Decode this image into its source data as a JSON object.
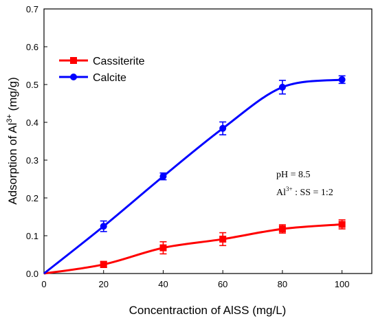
{
  "chart_data": {
    "type": "line",
    "xlabel": "Concentraction of AlSS (mg/L)",
    "ylabel_main": "Adsorption of Al",
    "ylabel_sup": "3+",
    "ylabel_unit": " (mg/g)",
    "xlim": [
      0,
      110
    ],
    "ylim": [
      0,
      0.7
    ],
    "xticks": [
      0,
      20,
      40,
      60,
      80,
      100
    ],
    "yticks": [
      0.0,
      0.1,
      0.2,
      0.3,
      0.4,
      0.5,
      0.6,
      0.7
    ],
    "xtick_labels": [
      "0",
      "20",
      "40",
      "60",
      "80",
      "100"
    ],
    "ytick_labels": [
      "0.0",
      "0.1",
      "0.2",
      "0.3",
      "0.4",
      "0.5",
      "0.6",
      "0.7"
    ],
    "grid": false,
    "legend_position": "top-left",
    "series": [
      {
        "name": "Cassiterite",
        "color": "#ff0000",
        "marker": "square",
        "x": [
          0,
          20,
          40,
          60,
          80,
          100
        ],
        "y": [
          0,
          0.024,
          0.068,
          0.091,
          0.118,
          0.13
        ],
        "err": [
          0,
          0.008,
          0.016,
          0.017,
          0.011,
          0.012
        ]
      },
      {
        "name": "Calcite",
        "color": "#0000ff",
        "marker": "circle",
        "x": [
          0,
          20,
          40,
          60,
          80,
          100
        ],
        "y": [
          0,
          0.125,
          0.257,
          0.384,
          0.493,
          0.513
        ],
        "err": [
          0,
          0.014,
          0.009,
          0.017,
          0.018,
          0.01
        ]
      }
    ],
    "annotation": {
      "line1": "pH = 8.5",
      "line2_main": "Al",
      "line2_sup": "3+",
      "line2_rest": " : SS = 1:2"
    }
  }
}
